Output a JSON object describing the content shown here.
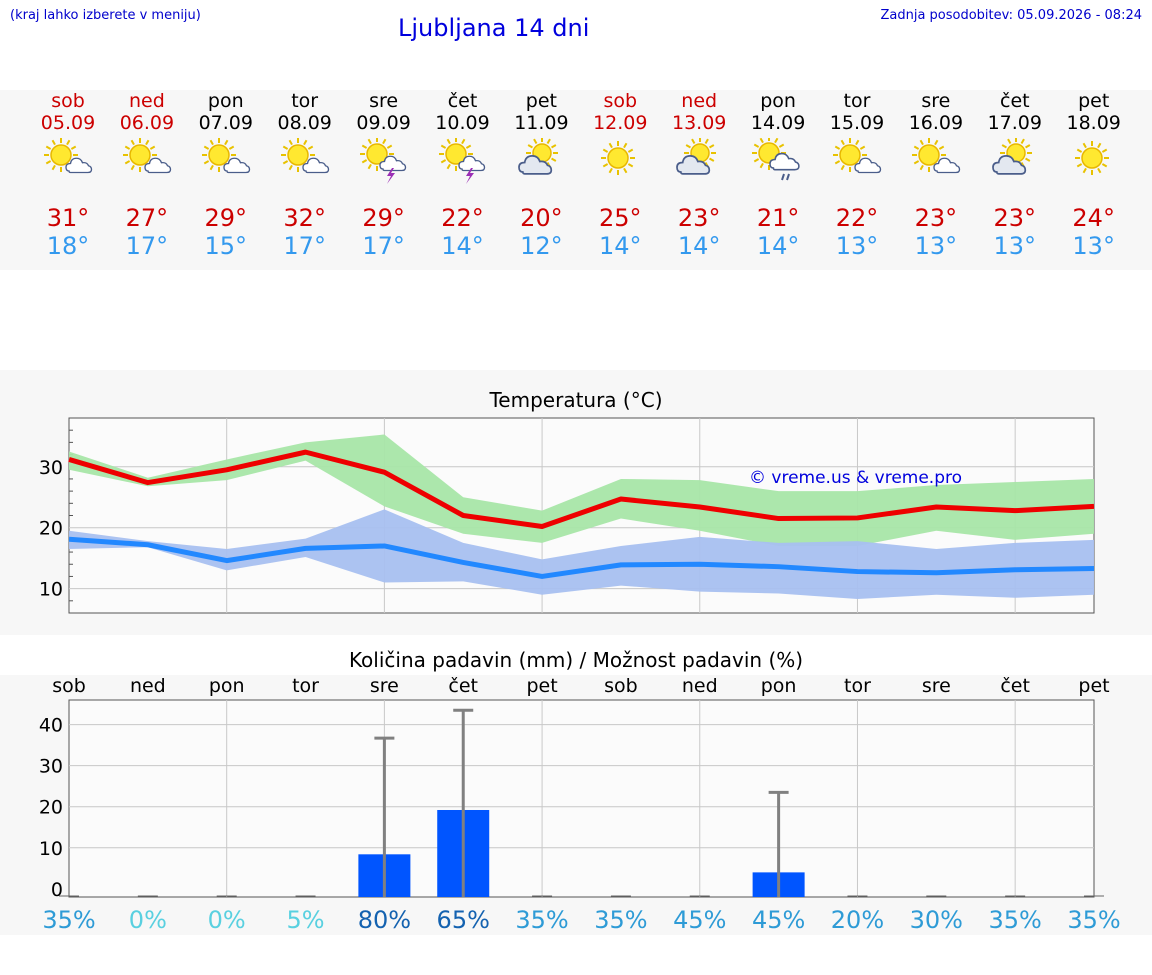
{
  "header": {
    "menu_hint": "(kraj lahko izberete v meniju)",
    "title": "Ljubljana 14 dni",
    "updated": "Zadnja posodobitev: 05.09.2026 - 08:24"
  },
  "days": [
    {
      "name": "sob",
      "date": "05.09",
      "weekend": true,
      "icon": "sun-cloud-icon",
      "max": "31°",
      "min": "18°"
    },
    {
      "name": "ned",
      "date": "06.09",
      "weekend": true,
      "icon": "sun-cloud-icon",
      "max": "27°",
      "min": "17°"
    },
    {
      "name": "pon",
      "date": "07.09",
      "weekend": false,
      "icon": "sun-cloud-icon",
      "max": "29°",
      "min": "15°"
    },
    {
      "name": "tor",
      "date": "08.09",
      "weekend": false,
      "icon": "sun-cloud-icon",
      "max": "32°",
      "min": "17°"
    },
    {
      "name": "sre",
      "date": "09.09",
      "weekend": false,
      "icon": "sun-thunder-icon",
      "max": "29°",
      "min": "17°"
    },
    {
      "name": "čet",
      "date": "10.09",
      "weekend": false,
      "icon": "sun-thunder-icon",
      "max": "22°",
      "min": "14°"
    },
    {
      "name": "pet",
      "date": "11.09",
      "weekend": false,
      "icon": "cloud-sun-icon",
      "max": "20°",
      "min": "12°"
    },
    {
      "name": "sob",
      "date": "12.09",
      "weekend": true,
      "icon": "sun-icon",
      "max": "25°",
      "min": "14°"
    },
    {
      "name": "ned",
      "date": "13.09",
      "weekend": true,
      "icon": "cloud-sun-icon",
      "max": "23°",
      "min": "14°"
    },
    {
      "name": "pon",
      "date": "14.09",
      "weekend": false,
      "icon": "sun-rain-icon",
      "max": "21°",
      "min": "14°"
    },
    {
      "name": "tor",
      "date": "15.09",
      "weekend": false,
      "icon": "sun-cloud-icon",
      "max": "22°",
      "min": "13°"
    },
    {
      "name": "sre",
      "date": "16.09",
      "weekend": false,
      "icon": "sun-cloud-icon",
      "max": "23°",
      "min": "13°"
    },
    {
      "name": "čet",
      "date": "17.09",
      "weekend": false,
      "icon": "cloud-sun-icon",
      "max": "23°",
      "min": "13°"
    },
    {
      "name": "pet",
      "date": "18.09",
      "weekend": false,
      "icon": "sun-icon",
      "max": "24°",
      "min": "13°"
    }
  ],
  "colors": {
    "max_line": "#ee0000",
    "max_band": "#a8e6a8",
    "min_line": "#2288ff",
    "min_band": "#a8c0f0",
    "bar": "#0055ff",
    "whisker": "#808080",
    "weekend": "#cc0000",
    "copyright": "#0000dd"
  },
  "chart_data": [
    {
      "type": "line",
      "title": "Temperatura (°C)",
      "x": [
        "05.09",
        "06.09",
        "07.09",
        "08.09",
        "09.09",
        "10.09",
        "11.09",
        "12.09",
        "13.09",
        "14.09",
        "15.09",
        "16.09",
        "17.09",
        "18.09"
      ],
      "ylim": [
        6,
        38
      ],
      "yticks": [
        10,
        20,
        30
      ],
      "grid": true,
      "annotation": "© vreme.us & vreme.pro",
      "series": [
        {
          "role": "max",
          "values": [
            31.2,
            27.4,
            29.5,
            32.4,
            29.1,
            22.0,
            20.2,
            24.7,
            23.4,
            21.5,
            21.6,
            23.4,
            22.8,
            23.5
          ],
          "band_low": [
            29.5,
            26.8,
            27.8,
            31.0,
            23.5,
            19.0,
            17.5,
            21.5,
            19.5,
            17.0,
            17.0,
            19.5,
            18.0,
            19.0
          ],
          "band_high": [
            32.5,
            28.2,
            31.2,
            34.0,
            35.3,
            25.0,
            22.8,
            28.0,
            27.8,
            26.0,
            26.0,
            27.0,
            27.5,
            28.0
          ]
        },
        {
          "role": "min",
          "values": [
            18.1,
            17.2,
            14.6,
            16.6,
            17.0,
            14.3,
            12.0,
            13.9,
            14.0,
            13.6,
            12.8,
            12.6,
            13.1,
            13.3
          ],
          "band_low": [
            16.5,
            16.8,
            13.0,
            15.2,
            11.0,
            11.2,
            9.0,
            10.5,
            9.5,
            9.2,
            8.3,
            9.0,
            8.5,
            9.0
          ],
          "band_high": [
            19.5,
            17.8,
            16.5,
            18.2,
            23.0,
            17.5,
            14.8,
            17.0,
            18.5,
            17.5,
            17.8,
            16.5,
            17.5,
            18.0
          ]
        }
      ]
    },
    {
      "type": "bar",
      "title": "Količina padavin (mm) / Možnost padavin (%)",
      "categories": [
        "sob",
        "ned",
        "pon",
        "tor",
        "sre",
        "čet",
        "pet",
        "sob",
        "ned",
        "pon",
        "tor",
        "sre",
        "čet",
        "pet"
      ],
      "ylim": [
        -2,
        46
      ],
      "yticks": [
        0,
        10,
        20,
        30,
        40
      ],
      "values": [
        0,
        0,
        0,
        0,
        8.4,
        19.2,
        0,
        0,
        0,
        4.0,
        0,
        0,
        0,
        0
      ],
      "whisker_high": [
        0,
        0,
        0,
        0,
        36.7,
        43.5,
        0,
        0,
        0,
        23.5,
        0,
        0,
        0,
        0
      ],
      "probability": [
        "35%",
        "0%",
        "0%",
        "5%",
        "80%",
        "65%",
        "35%",
        "35%",
        "45%",
        "45%",
        "20%",
        "30%",
        "35%",
        "35%"
      ],
      "prob_colors": [
        "#2e9bd6",
        "#59d0e0",
        "#59d0e0",
        "#59d0e0",
        "#1462b0",
        "#1462b0",
        "#2e9bd6",
        "#2e9bd6",
        "#2e9bd6",
        "#2e9bd6",
        "#2e9bd6",
        "#2e9bd6",
        "#2e9bd6",
        "#2e9bd6"
      ]
    }
  ]
}
